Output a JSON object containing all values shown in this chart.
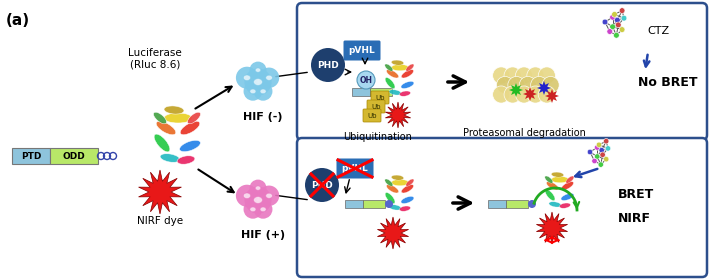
{
  "title_label": "(a)",
  "bg_color": "#ffffff",
  "box_color": "#2c4f8c",
  "ptd_color": "#8ec4dc",
  "odd_color": "#b8e868",
  "luciferase_label": "Luciferase\n(Rluc 8.6)",
  "nirf_label": "NIRF dye",
  "hif_minus_label": "HIF (-)",
  "hif_plus_label": "HIF (+)",
  "ubiq_label": "Ubiquitination",
  "proteasome_label": "Proteasomal degradation",
  "no_bret_label": "No BRET",
  "bret_label": "BRET",
  "nirf_label2": "NIRF",
  "ctz_label": "CTZ",
  "phd_color": "#1e3f6e",
  "pvhl_color": "#2a6db5",
  "arrow_color": "#111111",
  "red_star_color": "#e81818",
  "cell_top_color": "#7cc8e8",
  "cell_bot_color": "#e878c0",
  "ptd_label": "PTD",
  "odd_label": "ODD",
  "oh_color": "#a8d8f0",
  "ub_color": "#d4b830",
  "proteasome_color": "#d8c880",
  "green_color": "#22aa22",
  "blue_color": "#2244aa"
}
